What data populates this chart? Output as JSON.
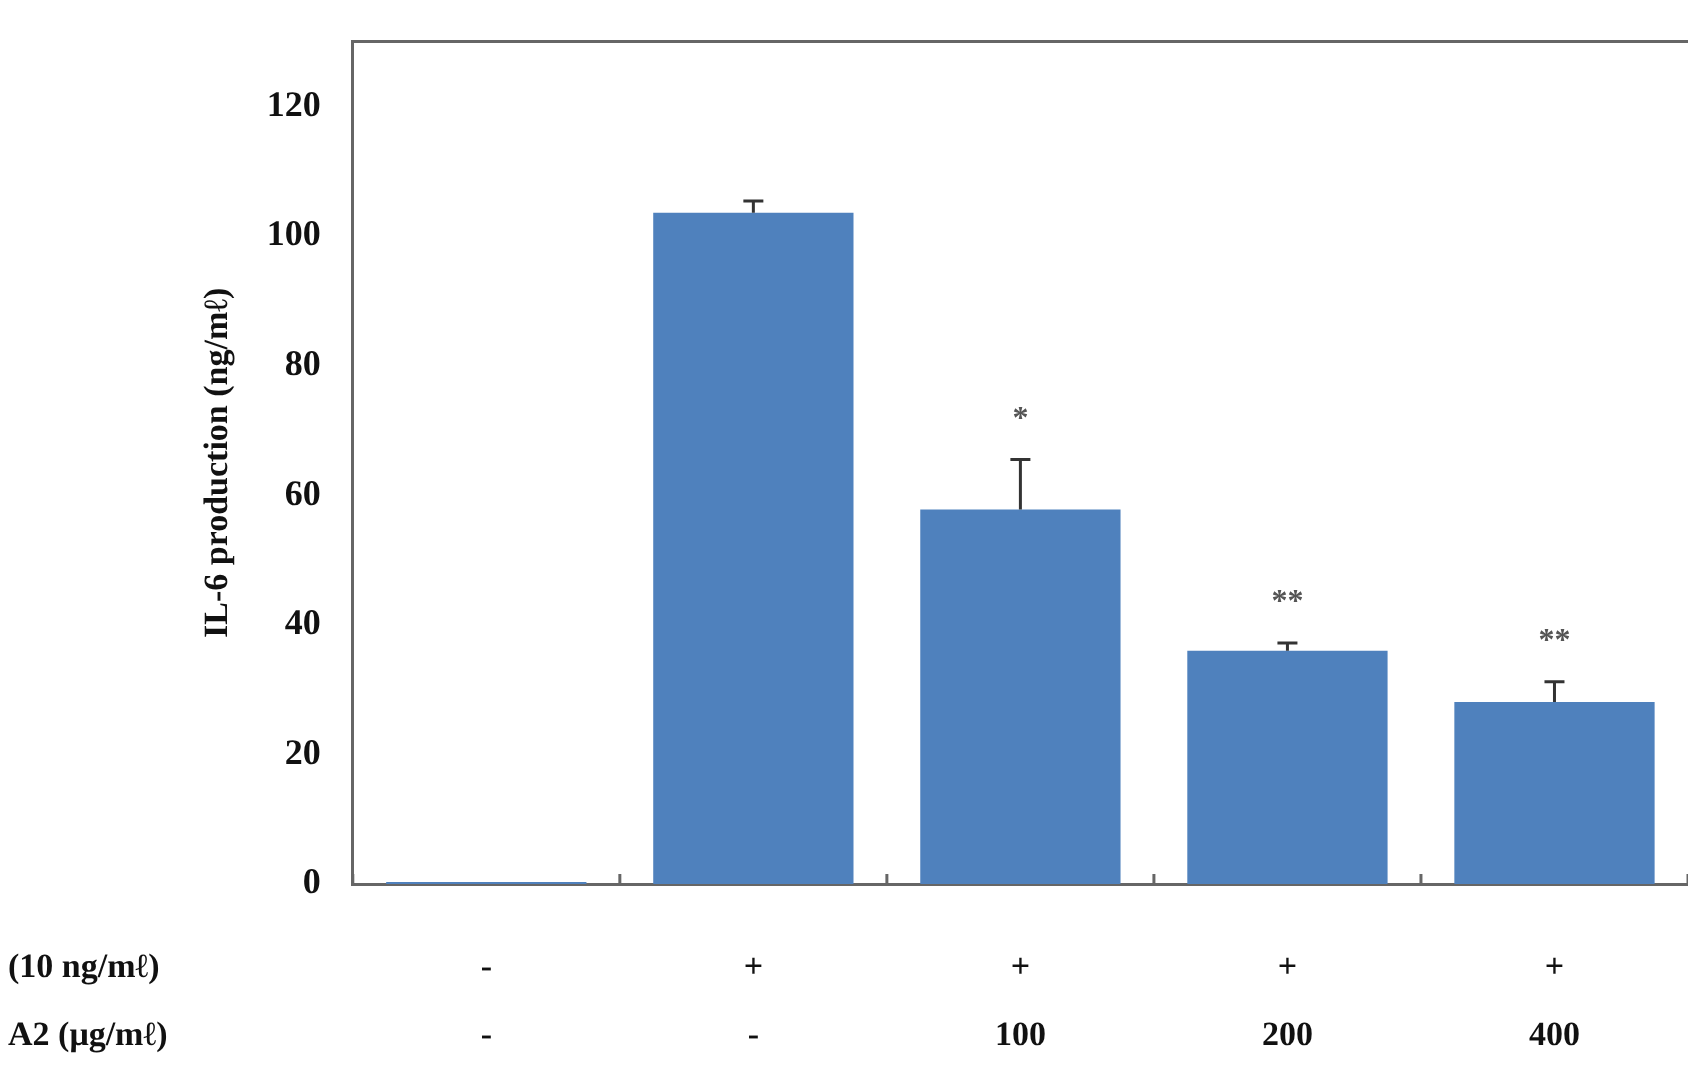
{
  "chart_data": {
    "type": "bar",
    "ylabel": "IL-6 production (ng/mℓ)",
    "categories": [
      "-\n-",
      "+\n-",
      "+\n100",
      "+\n200",
      "+\n400"
    ],
    "values": [
      0.3,
      103.6,
      57.8,
      36,
      28.1
    ],
    "errors": [
      null,
      1.8,
      7.7,
      1.2,
      3.1
    ],
    "color": "#4f81bd",
    "ylim": [
      0,
      130
    ],
    "yticks": [
      0,
      20,
      40,
      60,
      80,
      100,
      120
    ],
    "grid": false,
    "legend": false,
    "value_labels": [
      null,
      null,
      "*",
      "**",
      "**"
    ],
    "annotations": [
      "(10 ng/mℓ)",
      "A2 (μg/mℓ)"
    ]
  }
}
